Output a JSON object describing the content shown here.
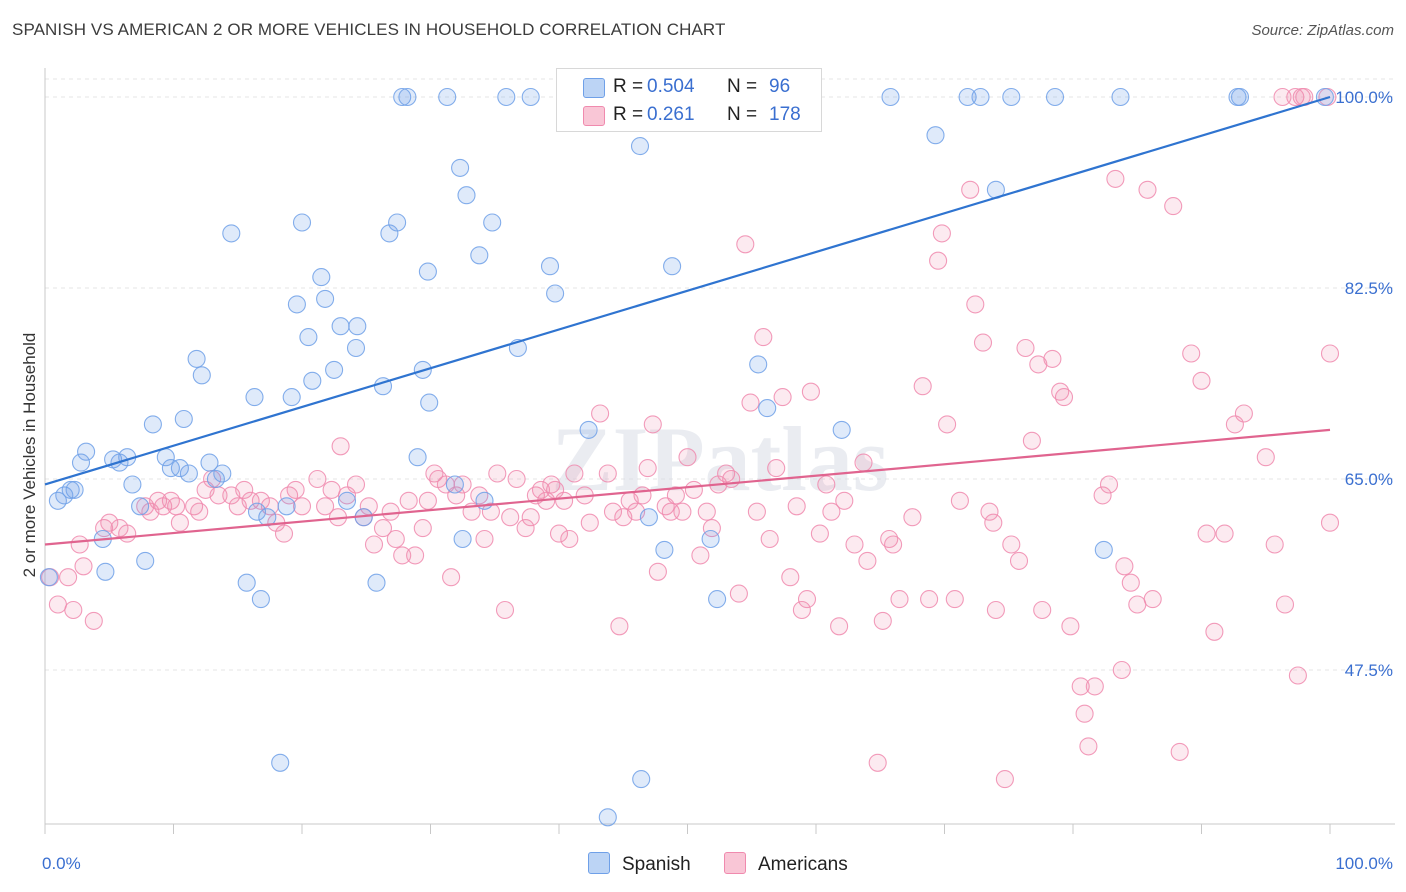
{
  "title": "SPANISH VS AMERICAN 2 OR MORE VEHICLES IN HOUSEHOLD CORRELATION CHART",
  "source": "Source: ZipAtlas.com",
  "watermark": "ZIPatlas",
  "stats": [
    {
      "r_label": "R =",
      "r_value": "0.504",
      "n_label": "N =",
      "n_value": "96",
      "color": "#6fa0e8"
    },
    {
      "r_label": "R =",
      "r_value": "0.261",
      "n_label": "N =",
      "n_value": "178",
      "color": "#f08aae"
    }
  ],
  "legend": [
    {
      "label": "Spanish",
      "color": "#6fa0e8"
    },
    {
      "label": "Americans",
      "color": "#f08aae"
    }
  ],
  "chart_data": {
    "type": "scatter",
    "ylabel": "2 or more Vehicles in Household",
    "xlim": [
      0,
      100
    ],
    "ylim": [
      33,
      101.5
    ],
    "x_tick_labels": [
      "0.0%",
      "100.0%"
    ],
    "y_ticks": [
      47.5,
      65.0,
      82.5,
      100.0
    ],
    "y_tick_labels": [
      "47.5%",
      "65.0%",
      "82.5%",
      "100.0%"
    ],
    "grid": true,
    "series": [
      {
        "name": "Spanish",
        "color": "#6fa0e8",
        "line_color": "#2f74d0",
        "trend": [
          [
            0,
            64.5
          ],
          [
            100,
            100.0
          ]
        ],
        "points": [
          [
            0.3,
            56.0
          ],
          [
            1.0,
            63.0
          ],
          [
            1.5,
            63.5
          ],
          [
            2.0,
            64.0
          ],
          [
            2.3,
            64.0
          ],
          [
            2.8,
            66.5
          ],
          [
            3.2,
            67.5
          ],
          [
            4.5,
            59.5
          ],
          [
            4.7,
            56.5
          ],
          [
            5.3,
            66.8
          ],
          [
            5.8,
            66.5
          ],
          [
            6.4,
            67.0
          ],
          [
            6.8,
            64.5
          ],
          [
            7.4,
            62.5
          ],
          [
            7.8,
            57.5
          ],
          [
            8.4,
            70.0
          ],
          [
            9.4,
            67.0
          ],
          [
            9.8,
            66.0
          ],
          [
            10.5,
            66.0
          ],
          [
            10.8,
            70.5
          ],
          [
            11.2,
            65.5
          ],
          [
            11.8,
            76.0
          ],
          [
            12.2,
            74.5
          ],
          [
            12.8,
            66.5
          ],
          [
            13.3,
            65.0
          ],
          [
            13.8,
            65.5
          ],
          [
            14.5,
            87.5
          ],
          [
            15.7,
            55.5
          ],
          [
            16.3,
            72.5
          ],
          [
            16.8,
            54.0
          ],
          [
            17.3,
            61.5
          ],
          [
            18.8,
            62.5
          ],
          [
            19.2,
            72.5
          ],
          [
            19.6,
            81.0
          ],
          [
            20.0,
            88.5
          ],
          [
            20.5,
            78.0
          ],
          [
            20.8,
            74.0
          ],
          [
            21.5,
            83.5
          ],
          [
            21.8,
            81.5
          ],
          [
            22.5,
            75.0
          ],
          [
            23.0,
            79.0
          ],
          [
            23.5,
            63.0
          ],
          [
            24.2,
            77.0
          ],
          [
            24.3,
            79.0
          ],
          [
            24.8,
            61.5
          ],
          [
            25.8,
            55.5
          ],
          [
            26.3,
            73.5
          ],
          [
            26.8,
            87.5
          ],
          [
            27.4,
            88.5
          ],
          [
            27.8,
            100.0
          ],
          [
            28.2,
            100.0
          ],
          [
            29.0,
            67.0
          ],
          [
            29.4,
            75.0
          ],
          [
            29.8,
            84.0
          ],
          [
            29.9,
            72.0
          ],
          [
            31.3,
            100.0
          ],
          [
            31.9,
            64.5
          ],
          [
            32.3,
            93.5
          ],
          [
            32.5,
            59.5
          ],
          [
            32.8,
            91.0
          ],
          [
            33.8,
            85.5
          ],
          [
            34.2,
            63.0
          ],
          [
            34.8,
            88.5
          ],
          [
            35.9,
            100.0
          ],
          [
            36.8,
            77.0
          ],
          [
            37.8,
            100.0
          ],
          [
            39.3,
            84.5
          ],
          [
            39.7,
            82.0
          ],
          [
            40.7,
            100.0
          ],
          [
            42.3,
            69.5
          ],
          [
            43.8,
            34.0
          ],
          [
            44.8,
            100.0
          ],
          [
            46.3,
            95.5
          ],
          [
            46.4,
            37.5
          ],
          [
            47.0,
            61.5
          ],
          [
            48.2,
            58.5
          ],
          [
            48.8,
            84.5
          ],
          [
            51.8,
            59.5
          ],
          [
            52.3,
            54.0
          ],
          [
            55.5,
            75.5
          ],
          [
            56.2,
            71.5
          ],
          [
            57.4,
            100.0
          ],
          [
            62.0,
            69.5
          ],
          [
            65.8,
            100.0
          ],
          [
            69.3,
            96.5
          ],
          [
            71.8,
            100.0
          ],
          [
            72.8,
            100.0
          ],
          [
            74.0,
            91.5
          ],
          [
            75.2,
            100.0
          ],
          [
            78.6,
            100.0
          ],
          [
            82.4,
            58.5
          ],
          [
            83.7,
            100.0
          ],
          [
            92.8,
            100.0
          ],
          [
            93.0,
            100.0
          ],
          [
            99.6,
            100.0
          ],
          [
            18.3,
            39.0
          ],
          [
            16.5,
            62.0
          ]
        ]
      },
      {
        "name": "Americans",
        "color": "#f08aae",
        "line_color": "#e0648f",
        "trend": [
          [
            0,
            59.0
          ],
          [
            100,
            69.5
          ]
        ],
        "points": [
          [
            0.4,
            56.0
          ],
          [
            1.0,
            53.5
          ],
          [
            1.8,
            56.0
          ],
          [
            2.2,
            53.0
          ],
          [
            2.7,
            59.0
          ],
          [
            3.0,
            57.0
          ],
          [
            3.8,
            52.0
          ],
          [
            4.6,
            60.5
          ],
          [
            5.0,
            61.0
          ],
          [
            5.8,
            60.5
          ],
          [
            6.4,
            60.0
          ],
          [
            7.8,
            62.5
          ],
          [
            8.2,
            62.0
          ],
          [
            8.8,
            63.0
          ],
          [
            9.2,
            62.5
          ],
          [
            9.8,
            63.0
          ],
          [
            10.2,
            62.5
          ],
          [
            10.5,
            61.0
          ],
          [
            11.6,
            62.5
          ],
          [
            12.0,
            62.0
          ],
          [
            12.5,
            64.0
          ],
          [
            13.0,
            65.0
          ],
          [
            13.5,
            63.5
          ],
          [
            14.5,
            63.5
          ],
          [
            15.0,
            62.5
          ],
          [
            15.5,
            64.0
          ],
          [
            16.0,
            63.0
          ],
          [
            16.8,
            63.0
          ],
          [
            17.5,
            62.5
          ],
          [
            18.0,
            61.0
          ],
          [
            18.6,
            60.0
          ],
          [
            19.0,
            63.5
          ],
          [
            19.5,
            64.0
          ],
          [
            20.0,
            62.5
          ],
          [
            21.2,
            65.0
          ],
          [
            21.8,
            62.5
          ],
          [
            22.3,
            64.0
          ],
          [
            22.8,
            61.5
          ],
          [
            23.0,
            68.0
          ],
          [
            23.5,
            63.5
          ],
          [
            24.2,
            64.5
          ],
          [
            24.8,
            61.5
          ],
          [
            25.2,
            62.5
          ],
          [
            25.6,
            59.0
          ],
          [
            26.3,
            60.5
          ],
          [
            26.9,
            62.0
          ],
          [
            27.3,
            59.5
          ],
          [
            27.8,
            58.0
          ],
          [
            28.3,
            63.0
          ],
          [
            28.8,
            58.0
          ],
          [
            29.4,
            60.5
          ],
          [
            29.8,
            63.0
          ],
          [
            30.3,
            65.5
          ],
          [
            30.6,
            65.0
          ],
          [
            31.2,
            64.5
          ],
          [
            31.6,
            56.0
          ],
          [
            32.0,
            63.5
          ],
          [
            32.5,
            64.5
          ],
          [
            33.2,
            62.0
          ],
          [
            33.8,
            63.5
          ],
          [
            34.2,
            59.5
          ],
          [
            34.7,
            62.0
          ],
          [
            35.2,
            65.5
          ],
          [
            35.8,
            53.0
          ],
          [
            36.2,
            61.5
          ],
          [
            36.7,
            65.0
          ],
          [
            37.4,
            60.5
          ],
          [
            37.8,
            61.5
          ],
          [
            38.2,
            63.5
          ],
          [
            38.6,
            64.0
          ],
          [
            39.0,
            63.0
          ],
          [
            39.4,
            64.5
          ],
          [
            39.7,
            64.0
          ],
          [
            40.0,
            60.0
          ],
          [
            40.4,
            63.0
          ],
          [
            40.8,
            59.5
          ],
          [
            41.2,
            65.5
          ],
          [
            42.0,
            63.5
          ],
          [
            42.4,
            61.0
          ],
          [
            43.2,
            71.0
          ],
          [
            43.8,
            65.5
          ],
          [
            44.2,
            62.0
          ],
          [
            44.7,
            51.5
          ],
          [
            45.0,
            61.5
          ],
          [
            45.5,
            63.0
          ],
          [
            46.0,
            62.0
          ],
          [
            46.5,
            63.5
          ],
          [
            46.9,
            66.0
          ],
          [
            47.3,
            70.0
          ],
          [
            47.7,
            56.5
          ],
          [
            48.3,
            62.5
          ],
          [
            48.7,
            62.0
          ],
          [
            49.1,
            63.5
          ],
          [
            49.6,
            62.0
          ],
          [
            50.0,
            67.0
          ],
          [
            50.5,
            64.0
          ],
          [
            51.0,
            58.0
          ],
          [
            51.5,
            62.0
          ],
          [
            51.9,
            60.5
          ],
          [
            52.4,
            64.5
          ],
          [
            53.0,
            65.5
          ],
          [
            53.4,
            65.0
          ],
          [
            54.0,
            54.5
          ],
          [
            54.5,
            86.5
          ],
          [
            54.9,
            72.0
          ],
          [
            55.4,
            62.0
          ],
          [
            55.9,
            78.0
          ],
          [
            56.4,
            59.5
          ],
          [
            56.9,
            66.0
          ],
          [
            57.4,
            72.5
          ],
          [
            58.0,
            56.0
          ],
          [
            58.5,
            62.5
          ],
          [
            58.9,
            53.0
          ],
          [
            59.3,
            54.0
          ],
          [
            59.6,
            73.0
          ],
          [
            60.3,
            60.0
          ],
          [
            60.8,
            64.5
          ],
          [
            61.2,
            62.0
          ],
          [
            61.8,
            51.5
          ],
          [
            62.2,
            63.0
          ],
          [
            63.0,
            59.0
          ],
          [
            63.7,
            66.5
          ],
          [
            64.0,
            57.5
          ],
          [
            64.8,
            39.0
          ],
          [
            65.2,
            52.0
          ],
          [
            65.7,
            59.5
          ],
          [
            66.0,
            59.0
          ],
          [
            66.5,
            54.0
          ],
          [
            67.5,
            61.5
          ],
          [
            68.3,
            73.5
          ],
          [
            68.8,
            54.0
          ],
          [
            69.5,
            85.0
          ],
          [
            69.8,
            87.5
          ],
          [
            70.2,
            70.0
          ],
          [
            70.8,
            54.0
          ],
          [
            71.2,
            63.0
          ],
          [
            72.0,
            91.5
          ],
          [
            72.4,
            81.0
          ],
          [
            73.0,
            77.5
          ],
          [
            73.5,
            62.0
          ],
          [
            73.8,
            61.0
          ],
          [
            74.0,
            53.0
          ],
          [
            74.7,
            37.5
          ],
          [
            75.2,
            59.0
          ],
          [
            75.8,
            57.5
          ],
          [
            76.3,
            77.0
          ],
          [
            76.8,
            68.5
          ],
          [
            77.3,
            75.5
          ],
          [
            77.6,
            53.0
          ],
          [
            78.4,
            76.0
          ],
          [
            79.0,
            73.0
          ],
          [
            79.3,
            72.5
          ],
          [
            79.8,
            51.5
          ],
          [
            80.6,
            46.0
          ],
          [
            80.9,
            43.5
          ],
          [
            81.2,
            40.5
          ],
          [
            81.7,
            46.0
          ],
          [
            82.3,
            63.5
          ],
          [
            82.8,
            64.5
          ],
          [
            83.3,
            92.5
          ],
          [
            83.8,
            47.5
          ],
          [
            84.0,
            57.0
          ],
          [
            84.5,
            55.5
          ],
          [
            85.0,
            53.5
          ],
          [
            85.8,
            91.5
          ],
          [
            86.2,
            54.0
          ],
          [
            87.8,
            90.0
          ],
          [
            88.3,
            40.0
          ],
          [
            89.2,
            76.5
          ],
          [
            90.0,
            74.0
          ],
          [
            90.4,
            60.0
          ],
          [
            91.0,
            51.0
          ],
          [
            91.8,
            60.0
          ],
          [
            92.6,
            70.0
          ],
          [
            93.3,
            71.0
          ],
          [
            95.0,
            67.0
          ],
          [
            96.3,
            100.0
          ],
          [
            97.3,
            100.0
          ],
          [
            97.8,
            100.0
          ],
          [
            98.0,
            100.0
          ],
          [
            99.8,
            100.0
          ],
          [
            100.0,
            61.0
          ],
          [
            100.0,
            76.5
          ],
          [
            95.7,
            59.0
          ],
          [
            96.5,
            53.5
          ],
          [
            97.5,
            47.0
          ]
        ]
      }
    ]
  }
}
